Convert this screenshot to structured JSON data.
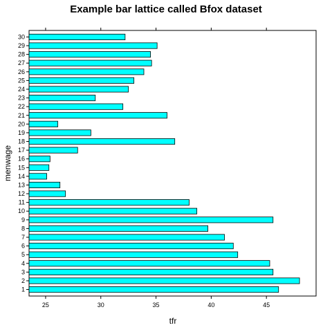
{
  "chart_data": {
    "type": "bar",
    "orientation": "horizontal",
    "title": "Example bar lattice called Bfox dataset",
    "xlabel": "tfr",
    "ylabel": "menwage",
    "categories": [
      "1",
      "2",
      "3",
      "4",
      "5",
      "6",
      "7",
      "8",
      "9",
      "10",
      "11",
      "12",
      "13",
      "14",
      "15",
      "16",
      "17",
      "18",
      "19",
      "20",
      "21",
      "22",
      "23",
      "24",
      "25",
      "26",
      "27",
      "28",
      "29",
      "30"
    ],
    "values": [
      46.1,
      48.0,
      45.6,
      45.3,
      42.4,
      42.0,
      41.2,
      39.7,
      45.6,
      38.7,
      38.0,
      26.8,
      26.3,
      25.1,
      25.3,
      25.4,
      27.9,
      36.7,
      29.1,
      26.1,
      36.0,
      32.0,
      29.5,
      32.5,
      33.0,
      33.9,
      34.6,
      34.5,
      35.1,
      32.2
    ],
    "xlim": [
      23.5,
      49.5
    ],
    "xticks": [
      25,
      30,
      35,
      40,
      45
    ],
    "bar_color": "#00FFFF"
  }
}
